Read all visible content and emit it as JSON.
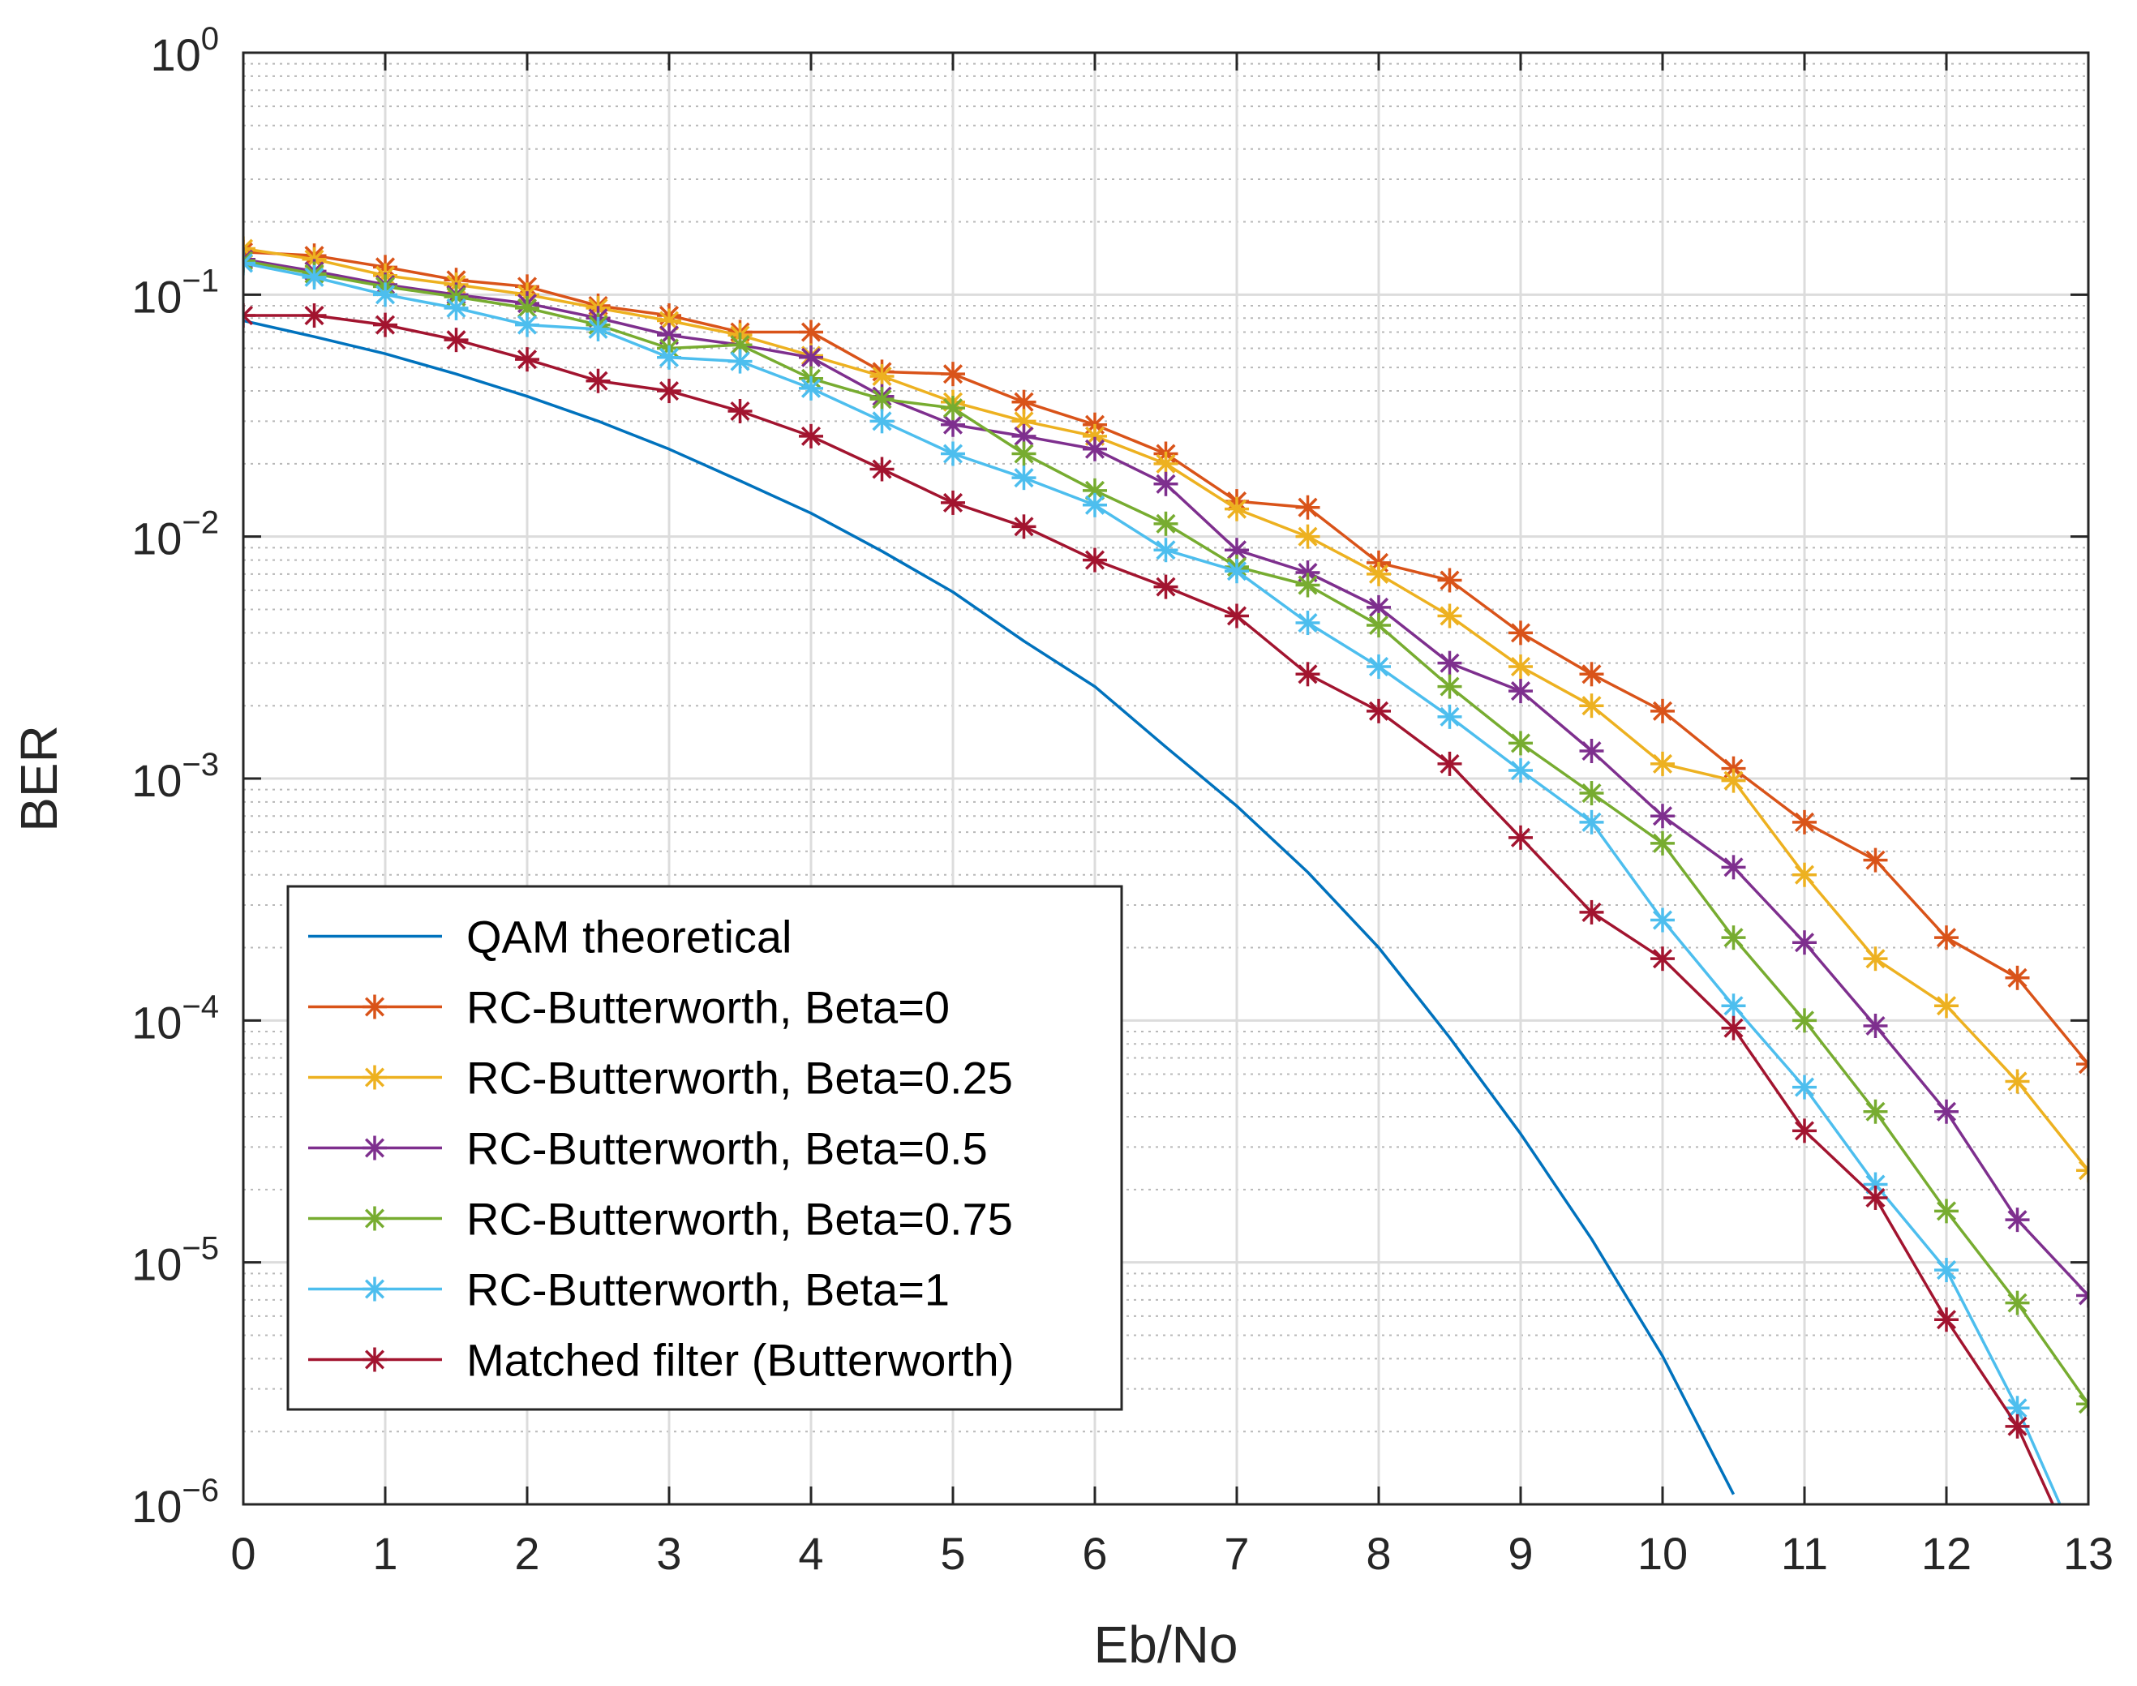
{
  "chart_data": {
    "type": "line",
    "title": "",
    "xlabel": "Eb/No",
    "ylabel": "BER",
    "xlim": [
      0,
      13
    ],
    "ylim": [
      1e-06,
      1
    ],
    "yscale": "log",
    "grid": true,
    "legend_position": "bottom-left",
    "x_ticks": [
      "0",
      "1",
      "2",
      "3",
      "4",
      "5",
      "6",
      "7",
      "8",
      "9",
      "10",
      "11",
      "12",
      "13"
    ],
    "y_ticks": [
      {
        "base": "10",
        "exp": "0"
      },
      {
        "base": "10",
        "exp": "−1"
      },
      {
        "base": "10",
        "exp": "−2"
      },
      {
        "base": "10",
        "exp": "−3"
      },
      {
        "base": "10",
        "exp": "−4"
      },
      {
        "base": "10",
        "exp": "−5"
      },
      {
        "base": "10",
        "exp": "−6"
      }
    ],
    "series": [
      {
        "name": "QAM theoretical",
        "color": "#0072BD",
        "marker": "none",
        "x": [
          0,
          0.5,
          1,
          1.5,
          2,
          2.5,
          3,
          3.5,
          4,
          4.5,
          5,
          5.5,
          6,
          6.5,
          7,
          7.5,
          8,
          8.5,
          9,
          9.5,
          10,
          10.5
        ],
        "values": [
          0.078,
          0.067,
          0.057,
          0.047,
          0.038,
          0.03,
          0.023,
          0.017,
          0.0125,
          0.0087,
          0.0059,
          0.0037,
          0.0024,
          0.00135,
          0.00077,
          0.00041,
          0.0002,
          8.5e-05,
          3.4e-05,
          1.25e-05,
          4.1e-06,
          1.1e-06
        ]
      },
      {
        "name": "RC-Butterworth, Beta=0",
        "color": "#D95319",
        "marker": "star",
        "x": [
          0,
          0.5,
          1,
          1.5,
          2,
          2.5,
          3,
          3.5,
          4,
          4.5,
          5,
          5.5,
          6,
          6.5,
          7,
          7.5,
          8,
          8.5,
          9,
          9.5,
          10,
          10.5,
          11,
          11.5,
          12,
          12.5,
          13
        ],
        "values": [
          0.15,
          0.145,
          0.13,
          0.115,
          0.108,
          0.09,
          0.082,
          0.07,
          0.07,
          0.048,
          0.047,
          0.036,
          0.029,
          0.022,
          0.014,
          0.0132,
          0.0078,
          0.0066,
          0.004,
          0.0027,
          0.0019,
          0.0011,
          0.00066,
          0.00046,
          0.00022,
          0.00015,
          6.6e-05
        ]
      },
      {
        "name": "RC-Butterworth, Beta=0.25",
        "color": "#EDB120",
        "marker": "star",
        "x": [
          0,
          0.5,
          1,
          1.5,
          2,
          2.5,
          3,
          3.5,
          4,
          4.5,
          5,
          5.5,
          6,
          6.5,
          7,
          7.5,
          8,
          8.5,
          9,
          9.5,
          10,
          10.5,
          11,
          11.5,
          12,
          12.5,
          13
        ],
        "values": [
          0.155,
          0.14,
          0.12,
          0.11,
          0.1,
          0.088,
          0.078,
          0.068,
          0.056,
          0.046,
          0.036,
          0.03,
          0.026,
          0.02,
          0.013,
          0.01,
          0.007,
          0.0047,
          0.0029,
          0.002,
          0.00115,
          0.00098,
          0.0004,
          0.00018,
          0.000115,
          5.6e-05,
          2.4e-05
        ]
      },
      {
        "name": "RC-Butterworth, Beta=0.5",
        "color": "#7E2F8E",
        "marker": "star",
        "x": [
          0,
          0.5,
          1,
          1.5,
          2,
          2.5,
          3,
          3.5,
          4,
          4.5,
          5,
          5.5,
          6,
          6.5,
          7,
          7.5,
          8,
          8.5,
          9,
          9.5,
          10,
          10.5,
          11,
          11.5,
          12,
          12.5,
          13
        ],
        "values": [
          0.14,
          0.125,
          0.11,
          0.1,
          0.092,
          0.08,
          0.068,
          0.062,
          0.055,
          0.038,
          0.029,
          0.026,
          0.023,
          0.0165,
          0.0088,
          0.0071,
          0.0051,
          0.003,
          0.0023,
          0.0013,
          0.0007,
          0.00043,
          0.00021,
          9.5e-05,
          4.2e-05,
          1.5e-05,
          7.3e-06
        ]
      },
      {
        "name": "RC-Butterworth, Beta=0.75",
        "color": "#77AC30",
        "marker": "star",
        "x": [
          0,
          0.5,
          1,
          1.5,
          2,
          2.5,
          3,
          3.5,
          4,
          4.5,
          5,
          5.5,
          6,
          6.5,
          7,
          7.5,
          8,
          8.5,
          9,
          9.5,
          10,
          10.5,
          11,
          11.5,
          12,
          12.5,
          13
        ],
        "values": [
          0.138,
          0.122,
          0.108,
          0.098,
          0.088,
          0.075,
          0.06,
          0.062,
          0.045,
          0.037,
          0.034,
          0.022,
          0.0155,
          0.0113,
          0.0075,
          0.0063,
          0.0043,
          0.0024,
          0.0014,
          0.00087,
          0.00054,
          0.00022,
          0.0001,
          4.2e-05,
          1.63e-05,
          6.8e-06,
          2.6e-06
        ]
      },
      {
        "name": "RC-Butterworth, Beta=1",
        "color": "#4DBEEE",
        "marker": "star",
        "x": [
          0,
          0.5,
          1,
          1.5,
          2,
          2.5,
          3,
          3.5,
          4,
          4.5,
          5,
          5.5,
          6,
          6.5,
          7,
          7.5,
          8,
          8.5,
          9,
          9.5,
          10,
          10.5,
          11,
          11.5,
          12,
          12.5,
          12.8
        ],
        "values": [
          0.135,
          0.118,
          0.1,
          0.088,
          0.075,
          0.072,
          0.055,
          0.053,
          0.041,
          0.03,
          0.022,
          0.0175,
          0.0135,
          0.0088,
          0.0072,
          0.0044,
          0.0029,
          0.0018,
          0.00108,
          0.00066,
          0.00026,
          0.000115,
          5.3e-05,
          2.1e-05,
          9.3e-06,
          2.5e-06,
          1e-06
        ]
      },
      {
        "name": "Matched filter (Butterworth)",
        "color": "#A2142F",
        "marker": "star",
        "x": [
          0,
          0.5,
          1,
          1.5,
          2,
          2.5,
          3,
          3.5,
          4,
          4.5,
          5,
          5.5,
          6,
          6.5,
          7,
          7.5,
          8,
          8.5,
          9,
          9.5,
          10,
          10.5,
          11,
          11.5,
          12,
          12.5,
          12.75
        ],
        "values": [
          0.082,
          0.082,
          0.075,
          0.065,
          0.054,
          0.044,
          0.04,
          0.033,
          0.026,
          0.019,
          0.0138,
          0.011,
          0.008,
          0.0062,
          0.0047,
          0.0027,
          0.0019,
          0.00115,
          0.00057,
          0.00028,
          0.00018,
          9.3e-05,
          3.5e-05,
          1.85e-05,
          5.8e-06,
          2.1e-06,
          1e-06
        ]
      }
    ]
  }
}
